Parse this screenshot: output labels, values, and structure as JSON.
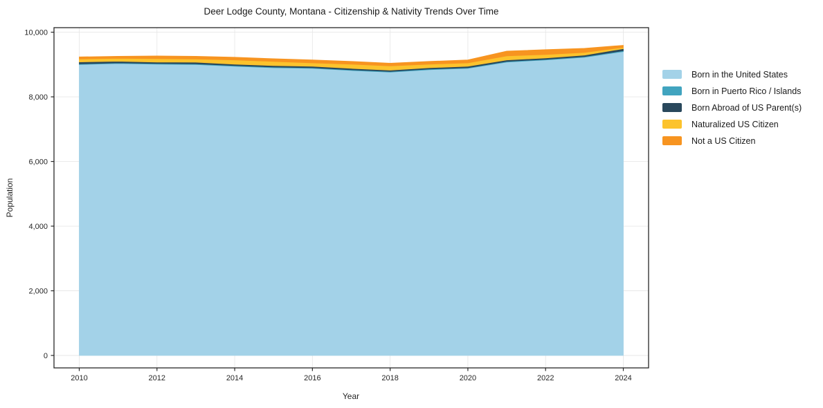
{
  "figure": {
    "title": "Deer Lodge County, Montana - Citizenship & Nativity Trends Over Time"
  },
  "chart_data": {
    "type": "area",
    "stacked": true,
    "title": "Deer Lodge County, Montana - Citizenship & Nativity Trends Over Time",
    "xlabel": "Year",
    "ylabel": "Population",
    "x": [
      2010,
      2011,
      2012,
      2013,
      2014,
      2015,
      2016,
      2017,
      2018,
      2019,
      2020,
      2021,
      2022,
      2023,
      2024
    ],
    "series": [
      {
        "name": "Born in the United States",
        "color": "#a3d2e8",
        "values": [
          9000,
          9030,
          9010,
          9000,
          8945,
          8900,
          8880,
          8815,
          8765,
          8840,
          8880,
          9075,
          9140,
          9225,
          9400
        ]
      },
      {
        "name": "Born in Puerto Rico / Islands",
        "color": "#41a4bf",
        "values": [
          20,
          20,
          20,
          20,
          20,
          20,
          20,
          20,
          20,
          20,
          20,
          20,
          20,
          20,
          25
        ]
      },
      {
        "name": "Born Abroad of US Parent(s)",
        "color": "#29485c",
        "values": [
          60,
          50,
          45,
          50,
          45,
          45,
          45,
          45,
          40,
          40,
          45,
          45,
          40,
          45,
          65
        ]
      },
      {
        "name": "Naturalized US Citizen",
        "color": "#fcc32d",
        "values": [
          90,
          90,
          105,
          100,
          130,
          130,
          105,
          130,
          130,
          110,
          105,
          125,
          110,
          85,
          40
        ]
      },
      {
        "name": "Not a US Citizen",
        "color": "#f79420",
        "values": [
          65,
          65,
          85,
          85,
          85,
          85,
          90,
          85,
          85,
          85,
          90,
          150,
          150,
          125,
          65
        ]
      }
    ],
    "x_ticks": [
      2010,
      2012,
      2014,
      2016,
      2018,
      2020,
      2022,
      2024
    ],
    "x_tick_labels": [
      "2010",
      "2012",
      "2014",
      "2016",
      "2018",
      "2020",
      "2022",
      "2024"
    ],
    "y_ticks": [
      0,
      2000,
      4000,
      6000,
      8000,
      10000
    ],
    "y_tick_labels": [
      "0",
      "2,000",
      "4,000",
      "6,000",
      "8,000",
      "10,000"
    ],
    "xlim": [
      2009.35,
      2024.65
    ],
    "ylim": [
      -385,
      10140
    ],
    "grid": true,
    "grid_color": "#e7e7e7",
    "spine_color": "#262626",
    "tick_label_color": "#262626",
    "legend_position": "right"
  }
}
